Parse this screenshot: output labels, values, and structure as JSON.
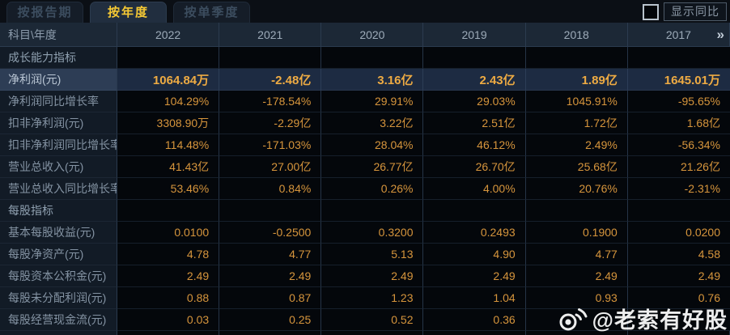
{
  "tabs": [
    {
      "label": "按报告期",
      "active": false
    },
    {
      "label": "按年度",
      "active": true
    },
    {
      "label": "按单季度",
      "active": false
    }
  ],
  "controls": {
    "show_yoy_label": "显示同比",
    "checkbox_checked": false
  },
  "table": {
    "corner_header": "科目\\年度",
    "years": [
      "2022",
      "2021",
      "2020",
      "2019",
      "2018",
      "2017"
    ],
    "more_indicator": "»",
    "rows": [
      {
        "type": "section",
        "label": "成长能力指标",
        "values": [
          "",
          "",
          "",
          "",
          "",
          ""
        ]
      },
      {
        "type": "highlight",
        "label": "净利润(元)",
        "values": [
          "1064.84万",
          "-2.48亿",
          "3.16亿",
          "2.43亿",
          "1.89亿",
          "1645.01万"
        ]
      },
      {
        "type": "normal",
        "label": "净利润同比增长率",
        "values": [
          "104.29%",
          "-178.54%",
          "29.91%",
          "29.03%",
          "1045.91%",
          "-95.65%"
        ]
      },
      {
        "type": "normal",
        "label": "扣非净利润(元)",
        "values": [
          "3308.90万",
          "-2.29亿",
          "3.22亿",
          "2.51亿",
          "1.72亿",
          "1.68亿"
        ]
      },
      {
        "type": "normal",
        "label": "扣非净利润同比增长率",
        "values": [
          "114.48%",
          "-171.03%",
          "28.04%",
          "46.12%",
          "2.49%",
          "-56.34%"
        ]
      },
      {
        "type": "normal",
        "label": "营业总收入(元)",
        "values": [
          "41.43亿",
          "27.00亿",
          "26.77亿",
          "26.70亿",
          "25.68亿",
          "21.26亿"
        ]
      },
      {
        "type": "normal",
        "label": "营业总收入同比增长率",
        "values": [
          "53.46%",
          "0.84%",
          "0.26%",
          "4.00%",
          "20.76%",
          "-2.31%"
        ]
      },
      {
        "type": "section",
        "label": "每股指标",
        "values": [
          "",
          "",
          "",
          "",
          "",
          ""
        ]
      },
      {
        "type": "normal",
        "label": "基本每股收益(元)",
        "values": [
          "0.0100",
          "-0.2500",
          "0.3200",
          "0.2493",
          "0.1900",
          "0.0200"
        ]
      },
      {
        "type": "normal",
        "label": "每股净资产(元)",
        "values": [
          "4.78",
          "4.77",
          "5.13",
          "4.90",
          "4.77",
          "4.58"
        ]
      },
      {
        "type": "normal",
        "label": "每股资本公积金(元)",
        "values": [
          "2.49",
          "2.49",
          "2.49",
          "2.49",
          "2.49",
          "2.49"
        ]
      },
      {
        "type": "normal",
        "label": "每股未分配利润(元)",
        "values": [
          "0.88",
          "0.87",
          "1.23",
          "1.04",
          "0.93",
          "0.76"
        ]
      },
      {
        "type": "normal",
        "label": "每股经营现金流(元)",
        "values": [
          "0.03",
          "0.25",
          "0.52",
          "0.36",
          "",
          ""
        ]
      }
    ]
  },
  "watermark": {
    "text": "@老索有好股",
    "icon": "weibo-icon"
  },
  "colors": {
    "accent_gold": "#f6c934",
    "value_orange": "#d6953c",
    "highlight_value": "#eeab43",
    "header_bg": "#1c2836",
    "label_bg": "#121b26",
    "cell_bg": "#04070b",
    "highlight_row_bg": "#1d2b42",
    "highlight_label_bg": "#2d3d55"
  }
}
